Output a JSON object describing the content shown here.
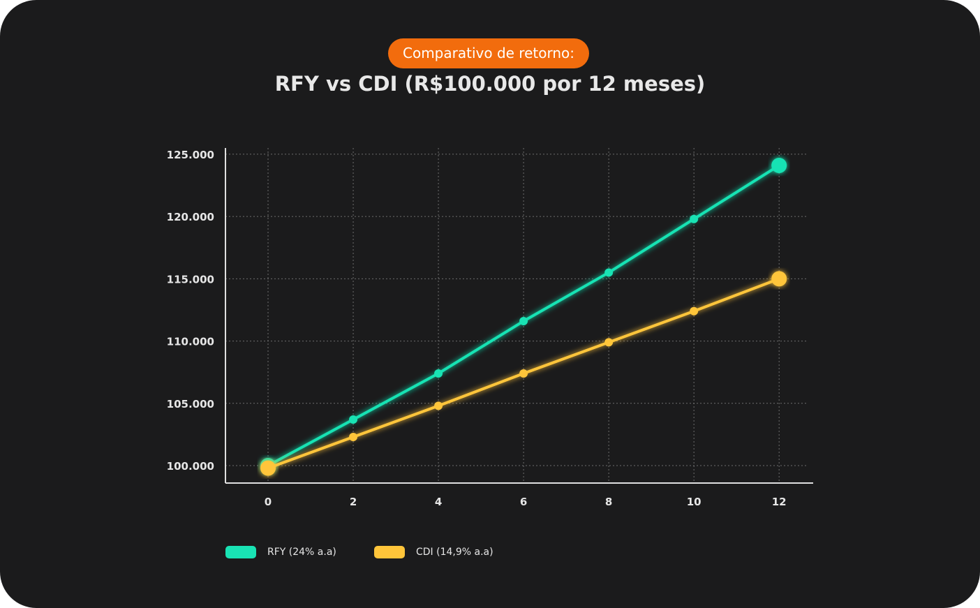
{
  "header": {
    "badge": "Comparativo de retorno:",
    "title": "RFY vs CDI (R$100.000 por 12 meses)"
  },
  "colors": {
    "background": "#1b1b1c",
    "badge": "#f26c0d",
    "rfy": "#19e3b4",
    "cdi": "#ffc53a",
    "grid": "#6e6e6e",
    "axis": "#e0e0e0"
  },
  "chart_data": {
    "type": "line",
    "title": "RFY vs CDI (R$100.000 por 12 meses)",
    "xlabel": "",
    "ylabel": "",
    "x": [
      0,
      2,
      4,
      6,
      8,
      10,
      12
    ],
    "xticks": [
      "0",
      "2",
      "4",
      "6",
      "8",
      "10",
      "12"
    ],
    "yticks": [
      {
        "value": 100000,
        "label": "100.000"
      },
      {
        "value": 105000,
        "label": "105.000"
      },
      {
        "value": 110000,
        "label": "110.000"
      },
      {
        "value": 115000,
        "label": "115.000"
      },
      {
        "value": 120000,
        "label": "120.000"
      },
      {
        "value": 125000,
        "label": "125.000"
      }
    ],
    "ylim": [
      98600,
      125500
    ],
    "xlim": [
      -1,
      12.8
    ],
    "grid": true,
    "legend_position": "bottom-left",
    "series": [
      {
        "name": "RFY (24% a.a)",
        "color": "#19e3b4",
        "values": [
          100000,
          103700,
          107400,
          111600,
          115500,
          119800,
          124100
        ]
      },
      {
        "name": "CDI (14,9% a.a)",
        "color": "#ffc53a",
        "values": [
          99800,
          102300,
          104800,
          107400,
          109900,
          112400,
          115000
        ]
      }
    ]
  }
}
